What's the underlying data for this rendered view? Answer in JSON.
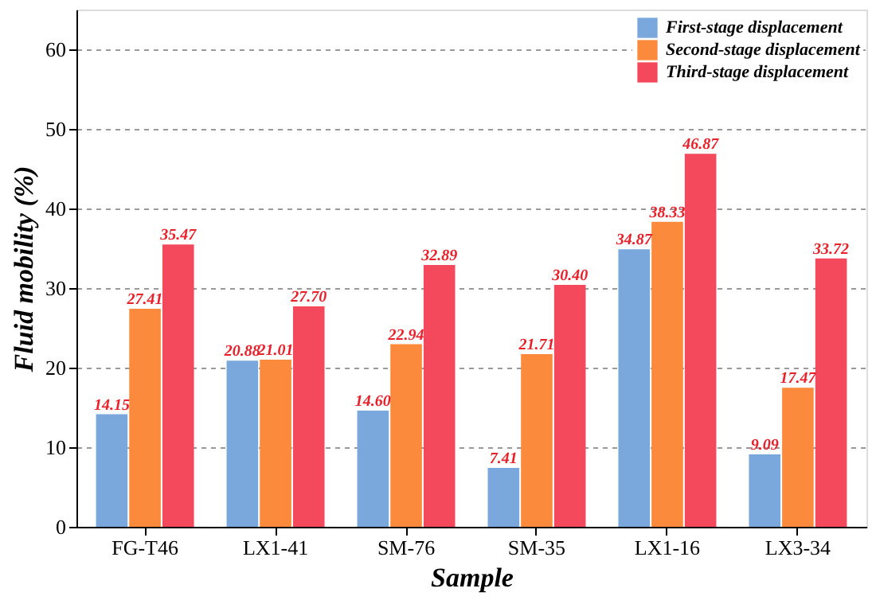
{
  "chart_data": {
    "type": "bar",
    "xlabel": "Sample",
    "ylabel": "Fluid mobility (%)",
    "categories": [
      "FG-T46",
      "LX1-41",
      "SM-76",
      "SM-35",
      "LX1-16",
      "LX3-34"
    ],
    "series": [
      {
        "name": "First-stage displacement",
        "color": "#7aa8dc",
        "values": [
          14.15,
          20.88,
          14.6,
          7.41,
          34.87,
          9.09
        ],
        "value_labels": [
          "14.15",
          "20.88",
          "14.60",
          "7.41",
          "34.87",
          "9.09"
        ]
      },
      {
        "name": "Second-stage displacement",
        "color": "#fb8a3c",
        "values": [
          27.41,
          21.01,
          22.94,
          21.71,
          38.33,
          17.47
        ],
        "value_labels": [
          "27.41",
          "21.01",
          "22.94",
          "21.71",
          "38.33",
          "17.47"
        ]
      },
      {
        "name": "Third-stage displacement",
        "color": "#f4485c",
        "values": [
          35.47,
          27.7,
          32.89,
          30.4,
          46.87,
          33.72
        ],
        "value_labels": [
          "35.47",
          "27.70",
          "32.89",
          "30.40",
          "46.87",
          "33.72"
        ]
      }
    ],
    "ylim": [
      0,
      65
    ],
    "yticks": [
      0,
      10,
      20,
      30,
      40,
      50,
      60
    ],
    "grid": "y",
    "legend": "top right"
  }
}
